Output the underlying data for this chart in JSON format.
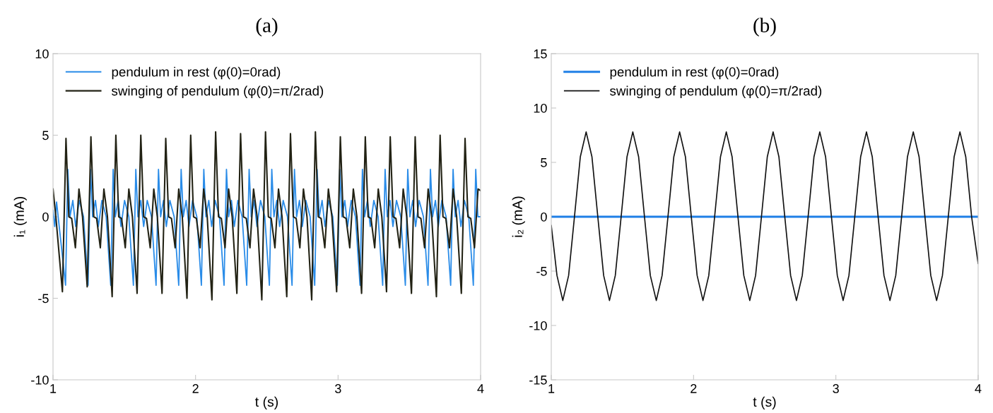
{
  "chart_data": [
    {
      "type": "line",
      "title": "(a)",
      "xlabel": "t (s)",
      "ylabel": "i₁ (mA)",
      "xlim": [
        1,
        4
      ],
      "xticks": [
        1,
        2,
        3,
        4
      ],
      "ylim": [
        -10,
        10
      ],
      "yticks": [
        -10,
        -5,
        0,
        5,
        10
      ],
      "grid": false,
      "legend": "top left",
      "marker": "none",
      "line_style": "solid",
      "series": [
        {
          "name": "pendulum in rest (φ(0)=0rad)",
          "color": "#2a8ce8",
          "x": [
            1.0,
            1.012,
            1.025,
            1.088,
            1.104,
            1.119,
            1.139,
            1.159,
            1.184,
            1.214,
            1.246,
            1.263,
            1.278,
            1.298,
            1.318,
            1.343,
            1.373,
            1.405,
            1.422,
            1.437,
            1.457,
            1.477,
            1.502,
            1.532,
            1.564,
            1.581,
            1.596,
            1.616,
            1.636,
            1.661,
            1.691,
            1.723,
            1.74,
            1.755,
            1.775,
            1.795,
            1.82,
            1.85,
            1.882,
            1.899,
            1.914,
            1.934,
            1.954,
            1.979,
            2.009,
            2.041,
            2.058,
            2.073,
            2.093,
            2.113,
            2.138,
            2.168,
            2.2,
            2.217,
            2.232,
            2.252,
            2.272,
            2.297,
            2.327,
            2.359,
            2.376,
            2.391,
            2.411,
            2.431,
            2.456,
            2.486,
            2.518,
            2.535,
            2.55,
            2.57,
            2.59,
            2.615,
            2.645,
            2.677,
            2.694,
            2.709,
            2.729,
            2.749,
            2.774,
            2.804,
            2.836,
            2.853,
            2.868,
            2.888,
            2.908,
            2.933,
            2.963,
            2.995,
            3.012,
            3.027,
            3.047,
            3.067,
            3.092,
            3.122,
            3.154,
            3.171,
            3.186,
            3.206,
            3.226,
            3.251,
            3.281,
            3.313,
            3.33,
            3.345,
            3.365,
            3.385,
            3.41,
            3.44,
            3.472,
            3.489,
            3.504,
            3.524,
            3.544,
            3.569,
            3.599,
            3.631,
            3.648,
            3.663,
            3.683,
            3.703,
            3.728,
            3.758,
            3.79,
            3.807,
            3.822,
            3.842,
            3.862,
            3.887,
            3.917,
            3.949,
            3.966,
            3.981,
            4.0
          ],
          "values": [
            0.4,
            -0.6,
            0.9,
            -4.2,
            2.9,
            0,
            1.0,
            -0.6,
            1.0,
            0,
            -4.2,
            2.9,
            0,
            1.0,
            -0.6,
            1.0,
            0,
            -4.2,
            2.9,
            0,
            1.0,
            -0.6,
            1.0,
            0,
            -4.2,
            2.9,
            0,
            1.0,
            -0.6,
            1.0,
            0,
            -4.2,
            2.9,
            0,
            1.0,
            -0.6,
            1.0,
            0,
            -4.2,
            2.9,
            0,
            1.0,
            -0.6,
            1.0,
            0,
            -4.2,
            2.9,
            0,
            1.0,
            -0.6,
            1.0,
            0,
            -4.2,
            2.9,
            0,
            1.0,
            -0.6,
            1.0,
            0,
            -4.2,
            2.9,
            0,
            1.0,
            -0.6,
            1.0,
            0,
            -4.2,
            2.9,
            0,
            1.0,
            -0.6,
            1.0,
            0,
            -4.2,
            2.9,
            0,
            1.0,
            -0.6,
            1.0,
            0,
            -4.2,
            2.9,
            0,
            1.0,
            -0.6,
            1.0,
            0,
            -4.2,
            2.9,
            0,
            1.0,
            -0.6,
            1.0,
            0,
            -4.2,
            2.9,
            0,
            1.0,
            -0.6,
            1.0,
            0,
            -4.2,
            2.9,
            0,
            1.0,
            -0.6,
            1.0,
            0,
            -4.2,
            2.9,
            0,
            1.0,
            -0.6,
            1.0,
            0,
            -4.2,
            2.9,
            0,
            1.0,
            -0.6,
            1.0,
            0,
            -4.2,
            2.9,
            0,
            1.0,
            -0.6,
            1.0,
            0,
            -4.2,
            2.9,
            0,
            0
          ]
        },
        {
          "name": "swinging of pendulum (φ(0)=π/2rad)",
          "color": "#222214",
          "x": [
            1.0,
            1.02,
            1.066,
            1.091,
            1.111,
            1.131,
            1.157,
            1.182,
            1.207,
            1.24,
            1.266,
            1.286,
            1.306,
            1.332,
            1.357,
            1.382,
            1.415,
            1.441,
            1.461,
            1.481,
            1.507,
            1.532,
            1.557,
            1.59,
            1.616,
            1.636,
            1.656,
            1.682,
            1.707,
            1.732,
            1.765,
            1.791,
            1.811,
            1.831,
            1.857,
            1.882,
            1.907,
            1.94,
            1.966,
            1.986,
            2.006,
            2.032,
            2.057,
            2.082,
            2.115,
            2.141,
            2.161,
            2.181,
            2.207,
            2.232,
            2.257,
            2.29,
            2.316,
            2.336,
            2.356,
            2.382,
            2.407,
            2.432,
            2.465,
            2.491,
            2.511,
            2.531,
            2.557,
            2.582,
            2.607,
            2.64,
            2.666,
            2.686,
            2.706,
            2.732,
            2.757,
            2.782,
            2.815,
            2.841,
            2.861,
            2.881,
            2.907,
            2.932,
            2.957,
            2.99,
            3.016,
            3.036,
            3.056,
            3.082,
            3.107,
            3.132,
            3.165,
            3.191,
            3.211,
            3.231,
            3.257,
            3.282,
            3.307,
            3.34,
            3.366,
            3.386,
            3.406,
            3.432,
            3.457,
            3.482,
            3.515,
            3.541,
            3.561,
            3.581,
            3.607,
            3.632,
            3.657,
            3.69,
            3.716,
            3.736,
            3.756,
            3.782,
            3.807,
            3.832,
            3.865,
            3.891,
            3.911,
            3.931,
            3.957,
            3.982,
            4.0
          ],
          "values": [
            1.7,
            0,
            -4.6,
            4.8,
            0,
            -0.1,
            -1.9,
            1.7,
            0,
            -4.3,
            4.9,
            0,
            -0.1,
            -1.9,
            1.7,
            0,
            -4.9,
            5.0,
            0,
            -0.1,
            -1.9,
            1.7,
            0,
            -4.7,
            5.0,
            0,
            -0.1,
            -1.9,
            1.7,
            0,
            -4.7,
            4.8,
            0,
            -0.1,
            -1.9,
            1.7,
            0,
            -5.0,
            5.0,
            0,
            -0.1,
            -1.9,
            1.7,
            0,
            -5.1,
            5.2,
            0,
            -0.1,
            -1.9,
            1.7,
            0,
            -4.7,
            5.1,
            0,
            -0.1,
            -1.9,
            1.7,
            0,
            -5.1,
            5.2,
            0,
            -0.1,
            -1.9,
            1.7,
            0,
            -4.9,
            5.1,
            0,
            -0.1,
            -1.9,
            1.7,
            0,
            -5.1,
            5.2,
            0,
            -0.1,
            -1.9,
            1.7,
            0,
            -4.6,
            4.9,
            0,
            -0.1,
            -1.9,
            1.7,
            0,
            -4.7,
            4.9,
            0,
            -0.1,
            -1.9,
            1.7,
            0,
            -4.6,
            4.9,
            0,
            -0.1,
            -1.9,
            1.7,
            0,
            -4.7,
            4.9,
            0,
            -0.1,
            -1.9,
            1.7,
            0,
            -4.9,
            5.0,
            0,
            -0.1,
            -1.9,
            1.7,
            0,
            -4.7,
            4.8,
            0,
            -0.1,
            -1.9,
            1.7,
            1.6
          ]
        }
      ]
    },
    {
      "type": "line",
      "title": "(b)",
      "xlabel": "t (s)",
      "ylabel": "i₂ (mA)",
      "xlim": [
        1,
        4
      ],
      "xticks": [
        1,
        2,
        3,
        4
      ],
      "ylim": [
        -15,
        15
      ],
      "yticks": [
        -15,
        -10,
        -5,
        0,
        5,
        10,
        15
      ],
      "grid": false,
      "legend": "top left",
      "marker": "none",
      "line_style": "solid",
      "series": [
        {
          "name": "pendulum in rest (φ(0)=0rad)",
          "color": "#1f7fe6",
          "x": [
            1.0,
            4.0
          ],
          "values": [
            0,
            0
          ]
        },
        {
          "name": "swinging of pendulum (φ(0)=π/2rad)",
          "color": "#111111",
          "x": [
            1.0,
            1.04,
            1.081,
            1.122,
            1.163,
            1.204,
            1.245,
            1.286,
            1.327,
            1.368,
            1.409,
            1.45,
            1.491,
            1.532,
            1.573,
            1.614,
            1.655,
            1.696,
            1.738,
            1.779,
            1.82,
            1.861,
            1.902,
            1.943,
            1.984,
            2.025,
            2.066,
            2.107,
            2.148,
            2.189,
            2.23,
            2.271,
            2.312,
            2.353,
            2.395,
            2.436,
            2.477,
            2.518,
            2.559,
            2.6,
            2.641,
            2.682,
            2.723,
            2.764,
            2.805,
            2.846,
            2.887,
            2.928,
            2.969,
            3.01,
            3.051,
            3.092,
            3.133,
            3.174,
            3.215,
            3.256,
            3.297,
            3.338,
            3.38,
            3.421,
            3.462,
            3.503,
            3.544,
            3.585,
            3.626,
            3.667,
            3.708,
            3.749,
            3.79,
            3.831,
            3.872,
            3.913,
            3.954,
            4.0
          ],
          "values": [
            -0.8,
            -5.4,
            -7.7,
            -5.4,
            0,
            5.5,
            7.8,
            5.5,
            0,
            -5.4,
            -7.7,
            -5.4,
            0,
            5.5,
            7.8,
            5.5,
            0,
            -5.4,
            -7.7,
            -5.4,
            0,
            5.5,
            7.8,
            5.5,
            0,
            -5.4,
            -7.7,
            -5.4,
            0,
            5.5,
            7.8,
            5.5,
            0,
            -5.4,
            -7.7,
            -5.4,
            0,
            5.5,
            7.8,
            5.5,
            0,
            -5.4,
            -7.7,
            -5.4,
            0,
            5.5,
            7.8,
            5.5,
            0,
            -5.4,
            -7.7,
            -5.4,
            0,
            5.5,
            7.8,
            5.5,
            0,
            -5.4,
            -7.7,
            -5.4,
            0,
            5.5,
            7.8,
            5.5,
            0,
            -5.4,
            -7.7,
            -5.4,
            0,
            5.5,
            7.8,
            5.5,
            0,
            -4.3
          ]
        }
      ]
    }
  ]
}
